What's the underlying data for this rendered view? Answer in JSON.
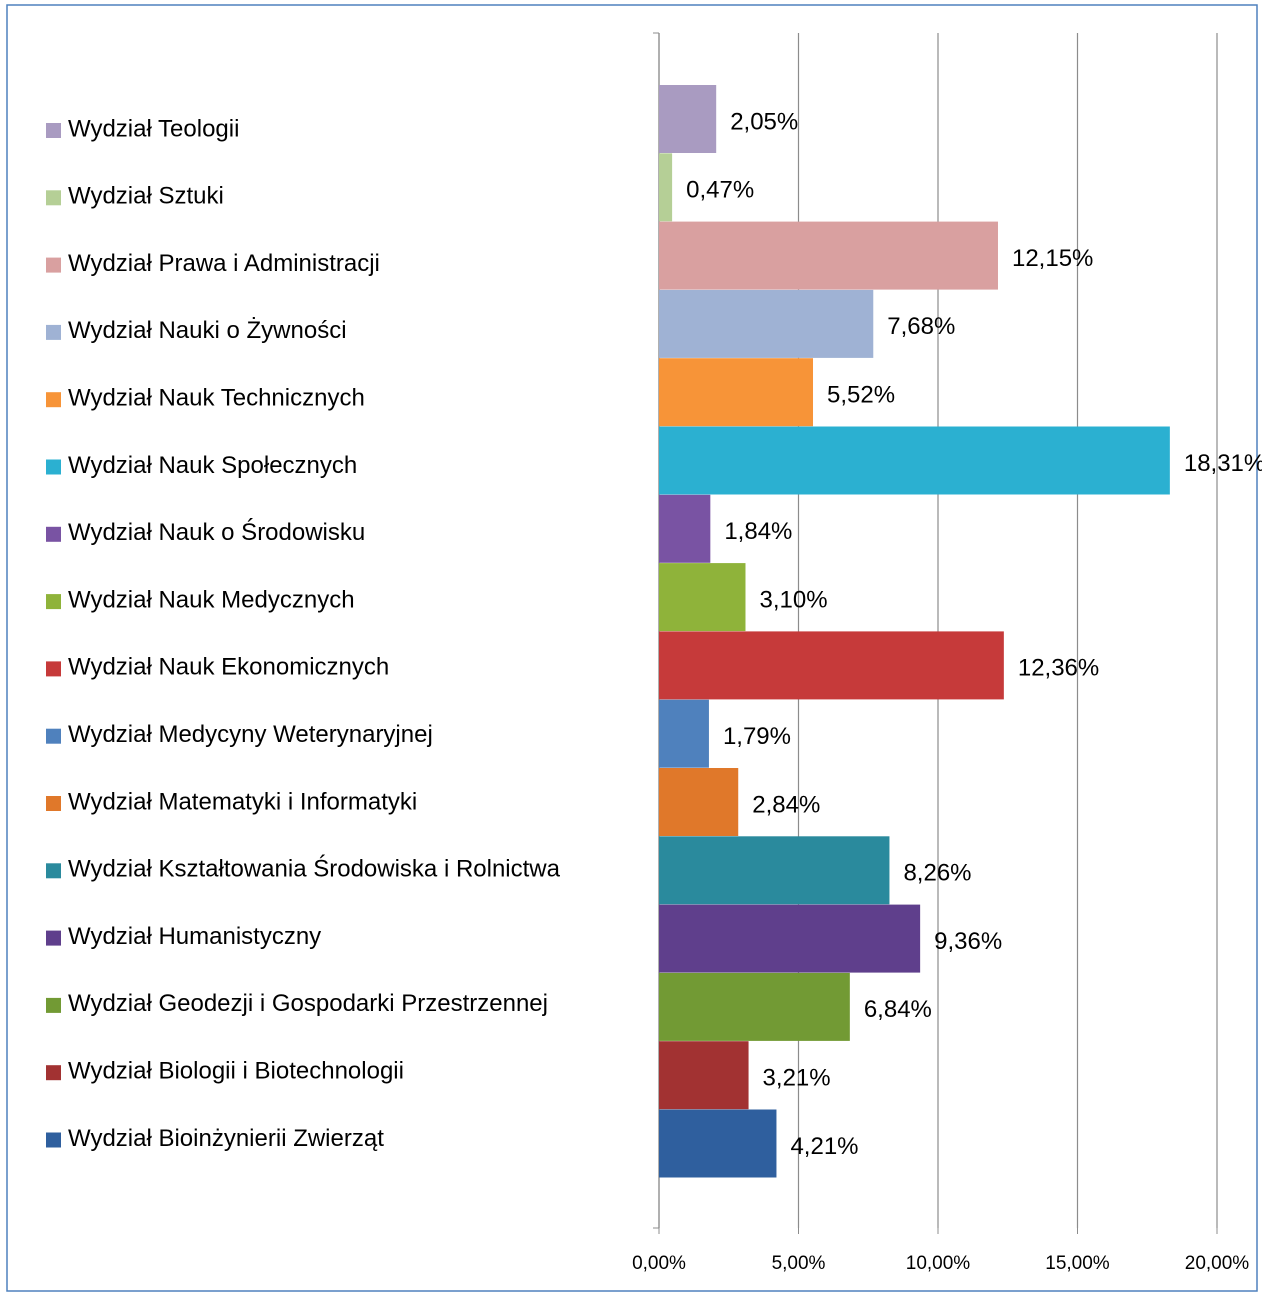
{
  "chart_data": {
    "type": "bar",
    "orientation": "horizontal",
    "categories": [
      "Wydział Teologii",
      "Wydział Sztuki",
      "Wydział Prawa i Administracji",
      "Wydział Nauki o Żywności",
      "Wydział Nauk Technicznych",
      "Wydział Nauk Społecznych",
      "Wydział Nauk o Środowisku",
      "Wydział Nauk Medycznych",
      "Wydział Nauk Ekonomicznych",
      "Wydział Medycyny Weterynaryjnej",
      "Wydział Matematyki i Informatyki",
      "Wydział Kształtowania Środowiska i Rolnictwa",
      "Wydział Humanistyczny",
      "Wydział Geodezji i Gospodarki Przestrzennej",
      "Wydział Biologii i Biotechnologii",
      "Wydział Bioinżynierii Zwierząt"
    ],
    "values": [
      2.05,
      0.47,
      12.15,
      7.68,
      5.52,
      18.31,
      1.84,
      3.1,
      12.36,
      1.79,
      2.84,
      8.26,
      9.36,
      6.84,
      3.21,
      4.21
    ],
    "value_labels": [
      "2,05%",
      "0,47%",
      "12,15%",
      "7,68%",
      "5,52%",
      "18,31%",
      "1,84%",
      "3,10%",
      "12,36%",
      "1,79%",
      "2,84%",
      "8,26%",
      "9,36%",
      "6,84%",
      "3,21%",
      "4,21%"
    ],
    "colors": [
      "#a99bc1",
      "#b5cf96",
      "#d9a0a0",
      "#9fb2d4",
      "#f79438",
      "#2bb0d1",
      "#7953a3",
      "#8fb33a",
      "#c63a3a",
      "#4f81bd",
      "#e0782a",
      "#2a8a9d",
      "#5f3f8c",
      "#729a34",
      "#a23232",
      "#2f5f9e"
    ],
    "xlim": [
      0,
      20
    ],
    "xticks": [
      {
        "value": 0,
        "label": "0,00%"
      },
      {
        "value": 5,
        "label": "5,00%"
      },
      {
        "value": 10,
        "label": "10,00%"
      },
      {
        "value": 15,
        "label": "15,00%"
      },
      {
        "value": 20,
        "label": "20,00%"
      }
    ],
    "grid": true,
    "legend": "left"
  }
}
